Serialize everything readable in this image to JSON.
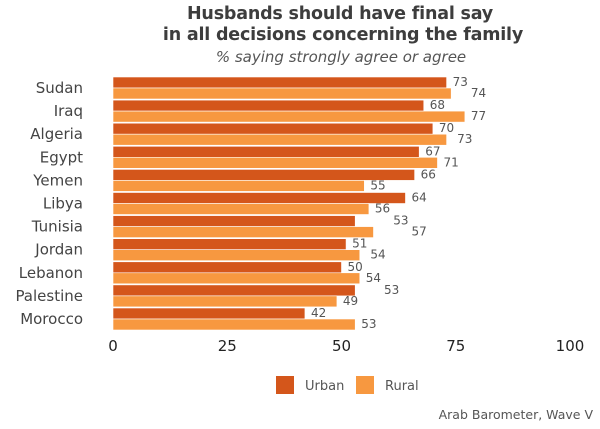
{
  "chart_data": {
    "type": "bar",
    "orientation": "horizontal",
    "title": "Husbands should have final say in all decisions concerning the family",
    "title_lines": [
      "Husbands should have final say",
      "in all decisions concerning the family"
    ],
    "subtitle": "% saying strongly agree or agree",
    "categories": [
      "Sudan",
      "Iraq",
      "Algeria",
      "Egypt",
      "Yemen",
      "Libya",
      "Tunisia",
      "Jordan",
      "Lebanon",
      "Palestine",
      "Morocco"
    ],
    "series": [
      {
        "name": "Urban",
        "color": "#d4561b",
        "values": [
          73,
          68,
          70,
          67,
          66,
          64,
          53,
          51,
          50,
          53,
          42
        ]
      },
      {
        "name": "Rural",
        "color": "#f79840",
        "values": [
          74,
          77,
          73,
          71,
          55,
          56,
          57,
          54,
          54,
          49,
          53
        ]
      }
    ],
    "xlim": [
      0,
      100
    ],
    "xticks": [
      0,
      25,
      50,
      75,
      100
    ],
    "grid": false,
    "legend_position": "bottom-center",
    "source": "Arab Barometer, Wave V"
  }
}
